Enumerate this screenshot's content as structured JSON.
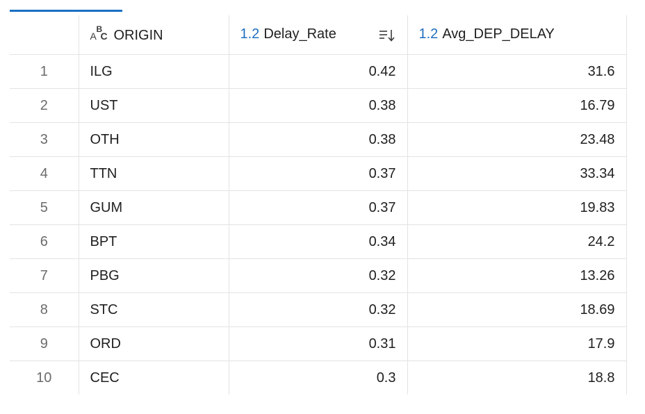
{
  "grid": {
    "columns": [
      {
        "type_label": "",
        "label": ""
      },
      {
        "type_label": "",
        "label": "ORIGIN",
        "type_icon": "abc-text-icon"
      },
      {
        "type_label": "1.2",
        "label": "Delay_Rate",
        "sort_icon": "sort-descending-icon"
      },
      {
        "type_label": "1.2",
        "label": "Avg_DEP_DELAY"
      }
    ],
    "rows": [
      {
        "idx": "1",
        "origin": "ILG",
        "delay_rate": "0.42",
        "avg_dep_delay": "31.6"
      },
      {
        "idx": "2",
        "origin": "UST",
        "delay_rate": "0.38",
        "avg_dep_delay": "16.79"
      },
      {
        "idx": "3",
        "origin": "OTH",
        "delay_rate": "0.38",
        "avg_dep_delay": "23.48"
      },
      {
        "idx": "4",
        "origin": "TTN",
        "delay_rate": "0.37",
        "avg_dep_delay": "33.34"
      },
      {
        "idx": "5",
        "origin": "GUM",
        "delay_rate": "0.37",
        "avg_dep_delay": "19.83"
      },
      {
        "idx": "6",
        "origin": "BPT",
        "delay_rate": "0.34",
        "avg_dep_delay": "24.2"
      },
      {
        "idx": "7",
        "origin": "PBG",
        "delay_rate": "0.32",
        "avg_dep_delay": "13.26"
      },
      {
        "idx": "8",
        "origin": "STC",
        "delay_rate": "0.32",
        "avg_dep_delay": "18.69"
      },
      {
        "idx": "9",
        "origin": "ORD",
        "delay_rate": "0.31",
        "avg_dep_delay": "17.9"
      },
      {
        "idx": "10",
        "origin": "CEC",
        "delay_rate": "0.3",
        "avg_dep_delay": "18.8"
      }
    ]
  },
  "colors": {
    "accent": "#1a6fc4",
    "type_badge": "#1f6fbf",
    "grid_line": "#e3e3e3",
    "index_text": "#6b6b6b"
  }
}
